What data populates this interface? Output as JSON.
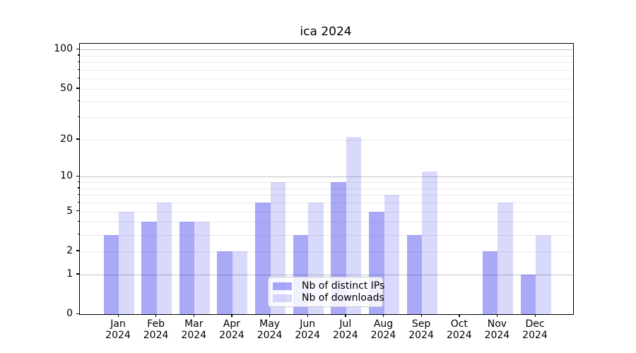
{
  "chart_data": {
    "type": "bar",
    "title": "ica 2024",
    "categories": [
      "Jan 2024",
      "Feb 2024",
      "Mar 2024",
      "Apr 2024",
      "May 2024",
      "Jun 2024",
      "Jul 2024",
      "Aug 2024",
      "Sep 2024",
      "Oct 2024",
      "Nov 2024",
      "Dec 2024"
    ],
    "series": [
      {
        "name": "Nb of distinct IPs",
        "color": "rgba(10,10,235,0.35)",
        "values": [
          3,
          4,
          4,
          2,
          6,
          3,
          9,
          5,
          3,
          0,
          2,
          1
        ]
      },
      {
        "name": "Nb of downloads",
        "color": "rgba(10,10,235,0.155)",
        "values": [
          5,
          6,
          4,
          2,
          9,
          6,
          21,
          7,
          11,
          0,
          6,
          3
        ]
      }
    ],
    "xlabel": "",
    "ylabel": "",
    "yscale": "log1p",
    "ylim": [
      0,
      111
    ],
    "yticks": [
      0,
      1,
      2,
      5,
      10,
      20,
      50,
      100
    ],
    "grid": "horizontal major+minor",
    "legend_position": "lower center",
    "colors": {
      "major_grid": "#c3c3c3",
      "minor_grid": "#ebebeb",
      "spine": "#000000",
      "legend_border": "#cccccc"
    }
  }
}
